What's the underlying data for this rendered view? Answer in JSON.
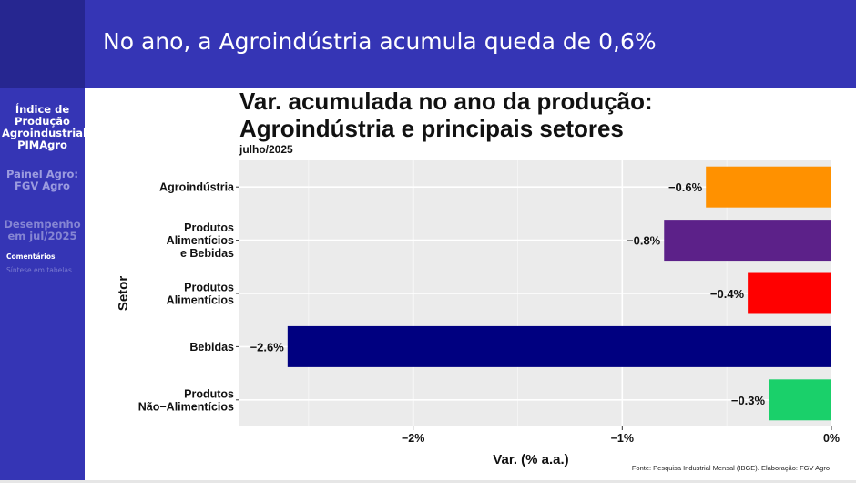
{
  "slide": {
    "title": "No ano, a Agroindústria acumula queda de 0,6%"
  },
  "sidebar": {
    "active_section": [
      "Índice de",
      "Produção",
      "Agroindustrial",
      "PIMAgro"
    ],
    "section_2": [
      "Painel Agro:",
      "FGV Agro"
    ],
    "section_3": [
      "Desempenho",
      "em jul/2025"
    ],
    "sub_items": [
      "Comentários",
      "Síntese em tabelas"
    ]
  },
  "caption": "Fonte: Pesquisa Industrial Mensal (IBGE). Elaboração: FGV Agro",
  "chart_data": {
    "type": "bar",
    "orientation": "horizontal",
    "title": "Var. acumulada no ano da produção:\nAgroindústria e principais setores",
    "subtitle": "julho/2025",
    "xlabel": "Var. (% a.a.)",
    "ylabel": "Setor",
    "categories": [
      [
        "Agroindústria"
      ],
      [
        "Produtos",
        "Alimentícios",
        "e Bebidas"
      ],
      [
        "Produtos",
        "Alimentícios"
      ],
      [
        "Bebidas"
      ],
      [
        "Produtos",
        "Não−Alimentícios"
      ]
    ],
    "values": [
      -0.6,
      -0.8,
      -0.4,
      -2.6,
      -0.3
    ],
    "value_labels": [
      "−0.6%",
      "−0.8%",
      "−0.4%",
      "−2.6%",
      "−0.3%"
    ],
    "colors": [
      "#ff9100",
      "#5c2189",
      "#ff0000",
      "#000080",
      "#1ad06a"
    ],
    "xticks": [
      -2,
      -1,
      0
    ],
    "xtick_labels": [
      "−2%",
      "−1%",
      "0%"
    ],
    "xlim": [
      -2.83,
      0
    ],
    "grid": true,
    "panel_background": "#ebebeb"
  }
}
